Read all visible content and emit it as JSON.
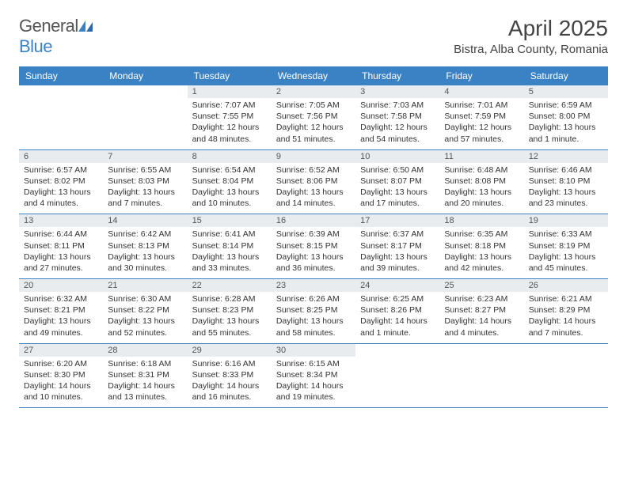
{
  "logo": {
    "text1": "General",
    "text2": "Blue"
  },
  "title": "April 2025",
  "location": "Bistra, Alba County, Romania",
  "colors": {
    "header_bg": "#3b82c4",
    "header_text": "#ffffff",
    "daynum_bg": "#e8ecef",
    "border": "#3b82c4",
    "logo_blue": "#3b82c4"
  },
  "weekdays": [
    "Sunday",
    "Monday",
    "Tuesday",
    "Wednesday",
    "Thursday",
    "Friday",
    "Saturday"
  ],
  "weeks": [
    [
      null,
      null,
      {
        "d": "1",
        "sunrise": "7:07 AM",
        "sunset": "7:55 PM",
        "daylight": "12 hours and 48 minutes."
      },
      {
        "d": "2",
        "sunrise": "7:05 AM",
        "sunset": "7:56 PM",
        "daylight": "12 hours and 51 minutes."
      },
      {
        "d": "3",
        "sunrise": "7:03 AM",
        "sunset": "7:58 PM",
        "daylight": "12 hours and 54 minutes."
      },
      {
        "d": "4",
        "sunrise": "7:01 AM",
        "sunset": "7:59 PM",
        "daylight": "12 hours and 57 minutes."
      },
      {
        "d": "5",
        "sunrise": "6:59 AM",
        "sunset": "8:00 PM",
        "daylight": "13 hours and 1 minute."
      }
    ],
    [
      {
        "d": "6",
        "sunrise": "6:57 AM",
        "sunset": "8:02 PM",
        "daylight": "13 hours and 4 minutes."
      },
      {
        "d": "7",
        "sunrise": "6:55 AM",
        "sunset": "8:03 PM",
        "daylight": "13 hours and 7 minutes."
      },
      {
        "d": "8",
        "sunrise": "6:54 AM",
        "sunset": "8:04 PM",
        "daylight": "13 hours and 10 minutes."
      },
      {
        "d": "9",
        "sunrise": "6:52 AM",
        "sunset": "8:06 PM",
        "daylight": "13 hours and 14 minutes."
      },
      {
        "d": "10",
        "sunrise": "6:50 AM",
        "sunset": "8:07 PM",
        "daylight": "13 hours and 17 minutes."
      },
      {
        "d": "11",
        "sunrise": "6:48 AM",
        "sunset": "8:08 PM",
        "daylight": "13 hours and 20 minutes."
      },
      {
        "d": "12",
        "sunrise": "6:46 AM",
        "sunset": "8:10 PM",
        "daylight": "13 hours and 23 minutes."
      }
    ],
    [
      {
        "d": "13",
        "sunrise": "6:44 AM",
        "sunset": "8:11 PM",
        "daylight": "13 hours and 27 minutes."
      },
      {
        "d": "14",
        "sunrise": "6:42 AM",
        "sunset": "8:13 PM",
        "daylight": "13 hours and 30 minutes."
      },
      {
        "d": "15",
        "sunrise": "6:41 AM",
        "sunset": "8:14 PM",
        "daylight": "13 hours and 33 minutes."
      },
      {
        "d": "16",
        "sunrise": "6:39 AM",
        "sunset": "8:15 PM",
        "daylight": "13 hours and 36 minutes."
      },
      {
        "d": "17",
        "sunrise": "6:37 AM",
        "sunset": "8:17 PM",
        "daylight": "13 hours and 39 minutes."
      },
      {
        "d": "18",
        "sunrise": "6:35 AM",
        "sunset": "8:18 PM",
        "daylight": "13 hours and 42 minutes."
      },
      {
        "d": "19",
        "sunrise": "6:33 AM",
        "sunset": "8:19 PM",
        "daylight": "13 hours and 45 minutes."
      }
    ],
    [
      {
        "d": "20",
        "sunrise": "6:32 AM",
        "sunset": "8:21 PM",
        "daylight": "13 hours and 49 minutes."
      },
      {
        "d": "21",
        "sunrise": "6:30 AM",
        "sunset": "8:22 PM",
        "daylight": "13 hours and 52 minutes."
      },
      {
        "d": "22",
        "sunrise": "6:28 AM",
        "sunset": "8:23 PM",
        "daylight": "13 hours and 55 minutes."
      },
      {
        "d": "23",
        "sunrise": "6:26 AM",
        "sunset": "8:25 PM",
        "daylight": "13 hours and 58 minutes."
      },
      {
        "d": "24",
        "sunrise": "6:25 AM",
        "sunset": "8:26 PM",
        "daylight": "14 hours and 1 minute."
      },
      {
        "d": "25",
        "sunrise": "6:23 AM",
        "sunset": "8:27 PM",
        "daylight": "14 hours and 4 minutes."
      },
      {
        "d": "26",
        "sunrise": "6:21 AM",
        "sunset": "8:29 PM",
        "daylight": "14 hours and 7 minutes."
      }
    ],
    [
      {
        "d": "27",
        "sunrise": "6:20 AM",
        "sunset": "8:30 PM",
        "daylight": "14 hours and 10 minutes."
      },
      {
        "d": "28",
        "sunrise": "6:18 AM",
        "sunset": "8:31 PM",
        "daylight": "14 hours and 13 minutes."
      },
      {
        "d": "29",
        "sunrise": "6:16 AM",
        "sunset": "8:33 PM",
        "daylight": "14 hours and 16 minutes."
      },
      {
        "d": "30",
        "sunrise": "6:15 AM",
        "sunset": "8:34 PM",
        "daylight": "14 hours and 19 minutes."
      },
      null,
      null,
      null
    ]
  ],
  "labels": {
    "sunrise": "Sunrise:",
    "sunset": "Sunset:",
    "daylight": "Daylight:"
  }
}
